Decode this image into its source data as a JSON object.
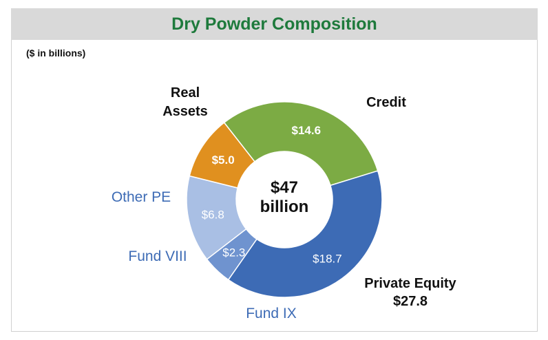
{
  "chart_data": {
    "type": "donut",
    "title": "Dry Powder Composition",
    "subtitle": "($ in billions)",
    "center_label": [
      "$47",
      "billion"
    ],
    "slices": [
      {
        "name": "Credit",
        "value": 14.6,
        "value_label": "$14.6",
        "color": "#7cab44",
        "category_label": [
          "Credit"
        ],
        "label_color": "#111111"
      },
      {
        "name": "Fund IX",
        "value": 18.7,
        "value_label": "$18.7",
        "color": "#3d6bb5",
        "category_label": [
          "Fund IX"
        ],
        "label_color": "#3d6bb5"
      },
      {
        "name": "Fund VIII",
        "value": 2.3,
        "value_label": "$2.3",
        "color": "#6f93cf",
        "category_label": [
          "Fund VIII"
        ],
        "label_color": "#3d6bb5"
      },
      {
        "name": "Other PE",
        "value": 6.8,
        "value_label": "$6.8",
        "color": "#a9bfe4",
        "category_label": [
          "Other PE"
        ],
        "label_color": "#3d6bb5"
      },
      {
        "name": "Real Assets",
        "value": 5.0,
        "value_label": "$5.0",
        "color": "#e0901f",
        "category_label": [
          "Real",
          "Assets"
        ],
        "label_color": "#111111"
      }
    ],
    "group_label": {
      "name": "Private Equity",
      "value_label": "$27.8"
    }
  }
}
